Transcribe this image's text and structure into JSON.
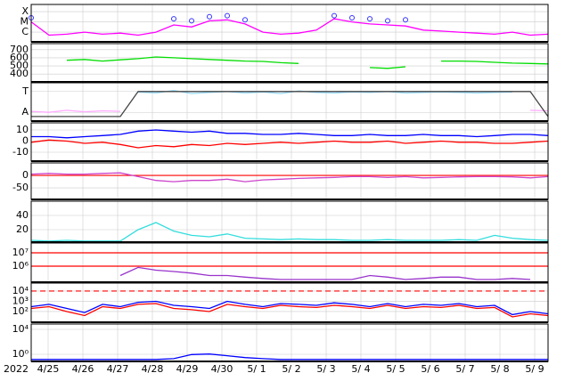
{
  "chart_data": [
    {
      "type": "line",
      "ylim": [
        -6.95,
        -3.3
      ],
      "yticks": [
        {
          "value": -4,
          "label": "X"
        },
        {
          "value": -5,
          "label": "M"
        },
        {
          "value": -6,
          "label": "C"
        }
      ],
      "series": [
        {
          "color": "#ff00ff",
          "values": [
            -5.0,
            -6.3,
            -6.2,
            -6.0,
            -6.2,
            -6.1,
            -6.3,
            -6.0,
            -5.3,
            -5.5,
            -4.9,
            -4.8,
            -5.2,
            -6.0,
            -6.2,
            -6.1,
            -5.8,
            -4.7,
            -5.0,
            -5.2,
            -5.3,
            -5.4,
            -5.8,
            -5.9,
            -6.0,
            -6.1,
            -6.2,
            -6.0,
            -6.3,
            -6.2
          ]
        },
        {
          "color": "#3333ff",
          "marker": "circle",
          "values": [
            -4.6,
            null,
            null,
            null,
            null,
            null,
            null,
            null,
            -4.7,
            -4.9,
            -4.5,
            -4.4,
            -4.8,
            null,
            null,
            null,
            null,
            -4.4,
            -4.6,
            -4.7,
            -4.9,
            -4.8,
            null,
            null,
            null,
            null,
            null,
            null,
            null,
            null
          ]
        }
      ]
    },
    {
      "type": "line",
      "ylim": [
        303,
        775
      ],
      "yticks": [
        700,
        600,
        500,
        400
      ],
      "series": [
        {
          "color": "#00dd00",
          "values": [
            440,
            null,
            570,
            580,
            560,
            575,
            590,
            610,
            600,
            590,
            580,
            570,
            560,
            555,
            540,
            530,
            null,
            null,
            null,
            480,
            470,
            490,
            null,
            560,
            560,
            555,
            545,
            535,
            530,
            525
          ]
        }
      ]
    },
    {
      "type": "line",
      "ylim": [
        -1.83,
        1.83
      ],
      "yticks": [
        {
          "value": 1,
          "label": "T"
        },
        {
          "value": -1,
          "label": "A"
        }
      ],
      "series": [
        {
          "color": "#ffaaff",
          "values": [
            -0.9,
            -1.0,
            -0.8,
            -0.95,
            -0.85,
            -0.9,
            null,
            null,
            null,
            null,
            null,
            null,
            null,
            null,
            null,
            null,
            null,
            null,
            null,
            null,
            null,
            null,
            null,
            null,
            null,
            null,
            null,
            null,
            -0.8,
            -0.85
          ]
        },
        {
          "color": "#99ddff",
          "values": [
            null,
            null,
            null,
            null,
            null,
            null,
            0.95,
            0.85,
            1.1,
            0.8,
            0.9,
            1.0,
            0.85,
            0.95,
            0.8,
            1.05,
            0.9,
            0.85,
            0.95,
            0.9,
            1.0,
            0.85,
            0.9,
            0.95,
            0.9,
            0.85,
            0.9,
            0.95,
            null,
            null
          ]
        },
        {
          "color": "#444444",
          "values": [
            -1.4,
            -1.4,
            -1.4,
            -1.4,
            -1.4,
            -1.4,
            1,
            1,
            1,
            1,
            1,
            1,
            1,
            1,
            1,
            1,
            1,
            1,
            1,
            1,
            1,
            1,
            1,
            1,
            1,
            1,
            1,
            1,
            1,
            -1.4
          ]
        }
      ]
    },
    {
      "type": "line",
      "ylim": [
        -18,
        16.4
      ],
      "yticks": [
        10,
        0,
        -10
      ],
      "series": [
        {
          "color": "#0000ff",
          "values": [
            4,
            4,
            3,
            4,
            5,
            6,
            9,
            10,
            9,
            8,
            9,
            7,
            7,
            6,
            6,
            7,
            6,
            5,
            5,
            6,
            5,
            5,
            6,
            5,
            5,
            4,
            5,
            6,
            6,
            5
          ]
        },
        {
          "color": "#ff0000",
          "values": [
            -1,
            1,
            0,
            -2,
            -1,
            -3,
            -6,
            -4,
            -5,
            -3,
            -4,
            -2,
            -3,
            -2,
            -1,
            -2,
            -1,
            0,
            -1,
            -1,
            0,
            -2,
            -1,
            0,
            -1,
            -1,
            -2,
            -2,
            -1,
            0
          ]
        }
      ]
    },
    {
      "type": "line",
      "ylim": [
        -96,
        50
      ],
      "yticks": [
        0,
        -50
      ],
      "hlines": [
        {
          "value": 0,
          "color": "#ff0000"
        }
      ],
      "series": [
        {
          "color": "#cc44cc",
          "values": [
            5,
            8,
            5,
            5,
            8,
            10,
            -5,
            -20,
            -25,
            -20,
            -20,
            -15,
            -25,
            -18,
            -15,
            -12,
            -10,
            -8,
            -5,
            -5,
            -8,
            -5,
            -10,
            -8,
            -6,
            -5,
            -5,
            -6,
            -10,
            -5
          ]
        }
      ]
    },
    {
      "type": "line",
      "ylim": [
        2.5,
        60
      ],
      "yticks": [
        40,
        20
      ],
      "series": [
        {
          "color": "#33dddd",
          "values": [
            5,
            4,
            5,
            4,
            4,
            4,
            20,
            30,
            18,
            12,
            10,
            14,
            8,
            7,
            6,
            7,
            6,
            6,
            5,
            5,
            6,
            5,
            5,
            5,
            6,
            5,
            12,
            8,
            6,
            5
          ]
        }
      ]
    },
    {
      "type": "line",
      "log": true,
      "ylim": [
        63000,
        54000000
      ],
      "yticks": [
        {
          "value": 10000000,
          "label": "10⁷"
        },
        {
          "value": 1000000,
          "label": "10⁶"
        }
      ],
      "hlines": [
        {
          "value": 10000000,
          "color": "#ff0000"
        },
        {
          "value": 1000000,
          "color": "#ff0000"
        }
      ],
      "series": [
        {
          "color": "#9933cc",
          "values": [
            null,
            null,
            null,
            null,
            null,
            200000,
            800000,
            500000,
            400000,
            300000,
            200000,
            200000,
            150000,
            120000,
            100000,
            100000,
            100000,
            100000,
            100000,
            200000,
            150000,
            100000,
            120000,
            150000,
            150000,
            100000,
            100000,
            120000,
            100000,
            null
          ]
        }
      ]
    },
    {
      "type": "line",
      "log": true,
      "ylim": [
        9,
        60000
      ],
      "yticks": [
        {
          "value": 10000,
          "label": "10⁴"
        },
        {
          "value": 1000,
          "label": "10³"
        },
        {
          "value": 100,
          "label": "10²"
        }
      ],
      "hlines": [
        {
          "value": 10000,
          "color": "#ff0000",
          "dash": true
        }
      ],
      "series": [
        {
          "color": "#0000ff",
          "values": [
            300,
            500,
            200,
            80,
            500,
            300,
            800,
            1000,
            400,
            300,
            200,
            1000,
            500,
            300,
            600,
            500,
            400,
            700,
            500,
            300,
            600,
            300,
            500,
            400,
            600,
            300,
            400,
            50,
            100,
            60
          ]
        },
        {
          "color": "#ff0000",
          "values": [
            200,
            300,
            100,
            40,
            300,
            200,
            500,
            600,
            200,
            150,
            100,
            500,
            300,
            200,
            400,
            300,
            250,
            400,
            300,
            200,
            400,
            200,
            300,
            250,
            400,
            200,
            250,
            30,
            60,
            40
          ]
        }
      ]
    },
    {
      "type": "line",
      "log": true,
      "ylim": [
        0.072,
        72000
      ],
      "yticks": [
        {
          "value": 10000,
          "label": "10⁴"
        },
        {
          "value": 1,
          "label": "10⁰"
        }
      ],
      "series": [
        {
          "color": "#0000ff",
          "values": [
            0.15,
            0.15,
            0.15,
            0.15,
            0.15,
            0.15,
            0.15,
            0.15,
            0.2,
            0.9,
            1.1,
            0.6,
            0.3,
            0.2,
            0.15,
            0.15,
            0.15,
            0.15,
            0.15,
            0.15,
            0.15,
            0.15,
            0.15,
            0.15,
            0.15,
            0.15,
            0.15,
            0.15,
            0.15,
            0.15
          ]
        }
      ]
    }
  ],
  "x_axis": {
    "year": "2022",
    "labels": [
      "4/25",
      "4/26",
      "4/27",
      "4/28",
      "4/29",
      "4/30",
      "5/ 1",
      "5/ 2",
      "5/ 3",
      "5/ 4",
      "5/ 5",
      "5/ 6",
      "5/ 7",
      "5/ 8",
      "5/ 9"
    ]
  }
}
